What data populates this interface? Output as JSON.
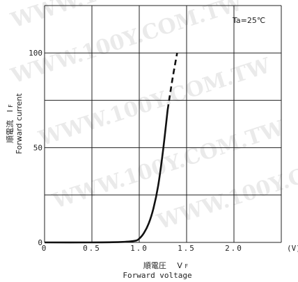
{
  "chart_data": {
    "type": "line",
    "annotation": "Ta=25℃",
    "xlabel_jp": "順電圧",
    "xlabel_symbol": "V",
    "xlabel_symbol_sub": "F",
    "xlabel_en": "Forward voltage",
    "ylabel_jp": "順電流",
    "ylabel_symbol": "I",
    "ylabel_symbol_sub": "F",
    "ylabel_en": "Forward current",
    "x_unit": "(V)",
    "xlim": [
      0,
      2.5
    ],
    "ylim": [
      0,
      125
    ],
    "x_ticks": [
      {
        "value": 0,
        "label": "0"
      },
      {
        "value": 0.5,
        "label": "0.5"
      },
      {
        "value": 1.0,
        "label": "1.0"
      },
      {
        "value": 1.5,
        "label": "1.5"
      },
      {
        "value": 2.0,
        "label": "2.0"
      }
    ],
    "y_ticks": [
      {
        "value": 0,
        "label": "0"
      },
      {
        "value": 50,
        "label": "50"
      },
      {
        "value": 100,
        "label": "100"
      }
    ],
    "grid": true,
    "series": [
      {
        "style": "solid",
        "x": [
          0,
          0.5,
          0.8,
          0.95,
          1.0,
          1.05,
          1.1,
          1.15,
          1.2,
          1.25,
          1.3
        ],
        "y": [
          0,
          0,
          0.2,
          0.8,
          2,
          5,
          10,
          18,
          30,
          48,
          70
        ]
      },
      {
        "style": "dashed",
        "x": [
          1.3,
          1.35,
          1.4
        ],
        "y": [
          70,
          86,
          100
        ]
      }
    ],
    "watermark": [
      "WWW.100Y.COM.TW",
      "WWW.100Y.COM.TW",
      "WWW.100Y.COM.TW",
      "WWW.100Y.COM.TW",
      "WWW.100Y.COM.TW"
    ]
  }
}
